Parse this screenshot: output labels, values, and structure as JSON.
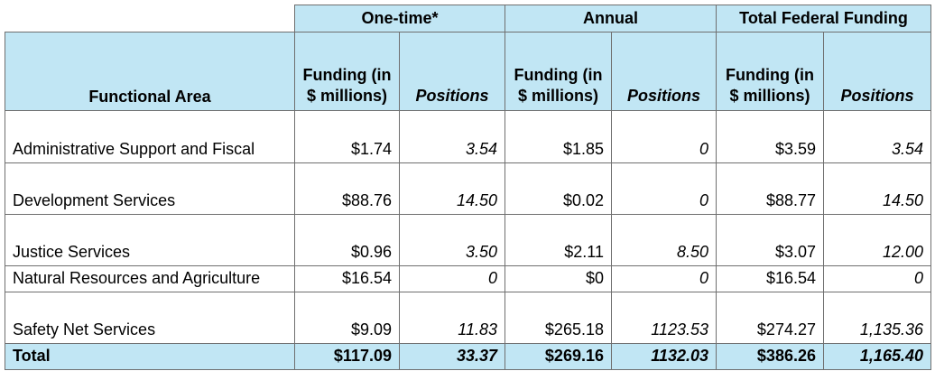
{
  "table": {
    "group_headers": [
      "One-time*",
      "Annual",
      "Total Federal Funding"
    ],
    "area_header": "Functional Area",
    "funding_header": "Funding (in $ millions)",
    "positions_header": "Positions",
    "rows": [
      {
        "area": "Administrative Support and Fiscal",
        "values": [
          "$1.74",
          "3.54",
          "$1.85",
          "0",
          "$3.59",
          "3.54"
        ]
      },
      {
        "area": "Development Services",
        "values": [
          "$88.76",
          "14.50",
          "$0.02",
          "0",
          "$88.77",
          "14.50"
        ]
      },
      {
        "area": "Justice Services",
        "values": [
          "$0.96",
          "3.50",
          "$2.11",
          "8.50",
          "$3.07",
          "12.00"
        ]
      },
      {
        "area": "Natural Resources and Agriculture",
        "values": [
          "$16.54",
          "0",
          "$0",
          "0",
          "$16.54",
          "0"
        ]
      },
      {
        "area": "Safety Net Services",
        "values": [
          "$9.09",
          "11.83",
          "$265.18",
          "1123.53",
          "$274.27",
          "1,135.36"
        ]
      }
    ],
    "total": {
      "area": "Total",
      "values": [
        "$117.09",
        "33.37",
        "$269.16",
        "1132.03",
        "$386.26",
        "1,165.40"
      ]
    }
  },
  "colors": {
    "header_bg": "#c1e6f4",
    "border": "#6f6f6f"
  }
}
